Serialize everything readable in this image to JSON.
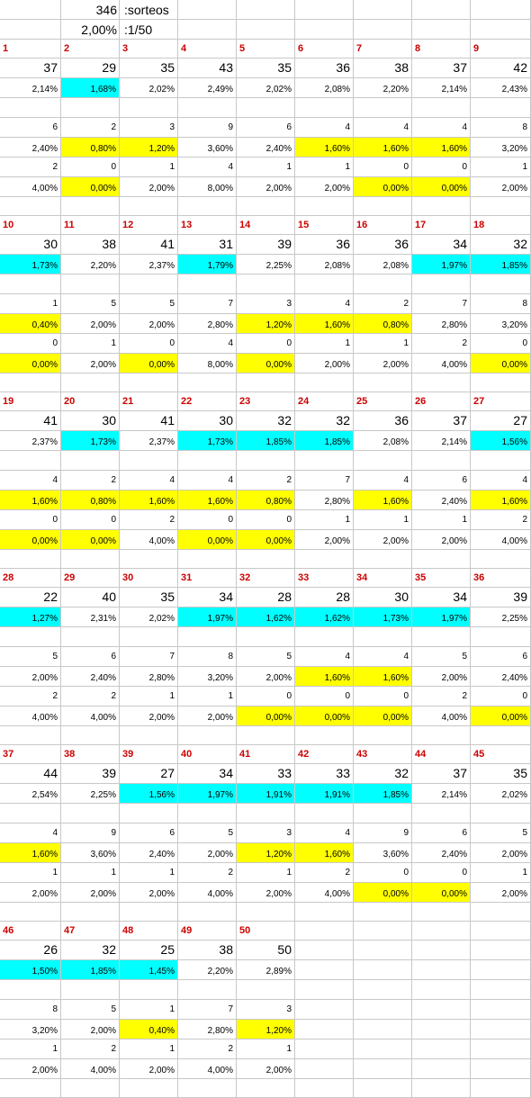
{
  "header": {
    "draws_count": "346",
    "draws_label": ":sorteos",
    "expected_pct": "2,00%",
    "expected_ratio": ":1/50"
  },
  "colors": {
    "low_freq": "#00ffff",
    "low_repeat": "#ffff00",
    "number": "#cc0000",
    "grid": "#c8c8c8"
  },
  "blocks": [
    {
      "numbers": [
        "1",
        "2",
        "3",
        "4",
        "5",
        "6",
        "7",
        "8",
        "9"
      ],
      "counts": [
        "37",
        "29",
        "35",
        "43",
        "35",
        "36",
        "38",
        "37",
        "42"
      ],
      "pcts": [
        "2,14%",
        "1,68%",
        "2,02%",
        "2,49%",
        "2,02%",
        "2,08%",
        "2,20%",
        "2,14%",
        "2,43%"
      ],
      "pct_hl": [
        0,
        1,
        0,
        0,
        0,
        0,
        0,
        0,
        0
      ],
      "r1": [
        "6",
        "2",
        "3",
        "9",
        "6",
        "4",
        "4",
        "4",
        "8"
      ],
      "r1p": [
        "2,40%",
        "0,80%",
        "1,20%",
        "3,60%",
        "2,40%",
        "1,60%",
        "1,60%",
        "1,60%",
        "3,20%"
      ],
      "r1p_hl": [
        0,
        1,
        1,
        0,
        0,
        1,
        1,
        1,
        0
      ],
      "r2": [
        "2",
        "0",
        "1",
        "4",
        "1",
        "1",
        "0",
        "0",
        "1"
      ],
      "r2p": [
        "4,00%",
        "0,00%",
        "2,00%",
        "8,00%",
        "2,00%",
        "2,00%",
        "0,00%",
        "0,00%",
        "2,00%"
      ],
      "r2p_hl": [
        0,
        1,
        0,
        0,
        0,
        0,
        1,
        1,
        0
      ]
    },
    {
      "numbers": [
        "10",
        "11",
        "12",
        "13",
        "14",
        "15",
        "16",
        "17",
        "18"
      ],
      "counts": [
        "30",
        "38",
        "41",
        "31",
        "39",
        "36",
        "36",
        "34",
        "32"
      ],
      "pcts": [
        "1,73%",
        "2,20%",
        "2,37%",
        "1,79%",
        "2,25%",
        "2,08%",
        "2,08%",
        "1,97%",
        "1,85%"
      ],
      "pct_hl": [
        1,
        0,
        0,
        1,
        0,
        0,
        0,
        1,
        1
      ],
      "r1": [
        "1",
        "5",
        "5",
        "7",
        "3",
        "4",
        "2",
        "7",
        "8"
      ],
      "r1p": [
        "0,40%",
        "2,00%",
        "2,00%",
        "2,80%",
        "1,20%",
        "1,60%",
        "0,80%",
        "2,80%",
        "3,20%"
      ],
      "r1p_hl": [
        1,
        0,
        0,
        0,
        1,
        1,
        1,
        0,
        0
      ],
      "r2": [
        "0",
        "1",
        "0",
        "4",
        "0",
        "1",
        "1",
        "2",
        "0"
      ],
      "r2p": [
        "0,00%",
        "2,00%",
        "0,00%",
        "8,00%",
        "0,00%",
        "2,00%",
        "2,00%",
        "4,00%",
        "0,00%"
      ],
      "r2p_hl": [
        1,
        0,
        1,
        0,
        1,
        0,
        0,
        0,
        1
      ]
    },
    {
      "numbers": [
        "19",
        "20",
        "21",
        "22",
        "23",
        "24",
        "25",
        "26",
        "27"
      ],
      "counts": [
        "41",
        "30",
        "41",
        "30",
        "32",
        "32",
        "36",
        "37",
        "27"
      ],
      "pcts": [
        "2,37%",
        "1,73%",
        "2,37%",
        "1,73%",
        "1,85%",
        "1,85%",
        "2,08%",
        "2,14%",
        "1,56%"
      ],
      "pct_hl": [
        0,
        1,
        0,
        1,
        1,
        1,
        0,
        0,
        1
      ],
      "r1": [
        "4",
        "2",
        "4",
        "4",
        "2",
        "7",
        "4",
        "6",
        "4"
      ],
      "r1p": [
        "1,60%",
        "0,80%",
        "1,60%",
        "1,60%",
        "0,80%",
        "2,80%",
        "1,60%",
        "2,40%",
        "1,60%"
      ],
      "r1p_hl": [
        1,
        1,
        1,
        1,
        1,
        0,
        1,
        0,
        1
      ],
      "r2": [
        "0",
        "0",
        "2",
        "0",
        "0",
        "1",
        "1",
        "1",
        "2"
      ],
      "r2p": [
        "0,00%",
        "0,00%",
        "4,00%",
        "0,00%",
        "0,00%",
        "2,00%",
        "2,00%",
        "2,00%",
        "4,00%"
      ],
      "r2p_hl": [
        1,
        1,
        0,
        1,
        1,
        0,
        0,
        0,
        0
      ]
    },
    {
      "numbers": [
        "28",
        "29",
        "30",
        "31",
        "32",
        "33",
        "34",
        "35",
        "36"
      ],
      "counts": [
        "22",
        "40",
        "35",
        "34",
        "28",
        "28",
        "30",
        "34",
        "39"
      ],
      "pcts": [
        "1,27%",
        "2,31%",
        "2,02%",
        "1,97%",
        "1,62%",
        "1,62%",
        "1,73%",
        "1,97%",
        "2,25%"
      ],
      "pct_hl": [
        1,
        0,
        0,
        1,
        1,
        1,
        1,
        1,
        0
      ],
      "r1": [
        "5",
        "6",
        "7",
        "8",
        "5",
        "4",
        "4",
        "5",
        "6"
      ],
      "r1p": [
        "2,00%",
        "2,40%",
        "2,80%",
        "3,20%",
        "2,00%",
        "1,60%",
        "1,60%",
        "2,00%",
        "2,40%"
      ],
      "r1p_hl": [
        0,
        0,
        0,
        0,
        0,
        1,
        1,
        0,
        0
      ],
      "r2": [
        "2",
        "2",
        "1",
        "1",
        "0",
        "0",
        "0",
        "2",
        "0"
      ],
      "r2p": [
        "4,00%",
        "4,00%",
        "2,00%",
        "2,00%",
        "0,00%",
        "0,00%",
        "0,00%",
        "4,00%",
        "0,00%"
      ],
      "r2p_hl": [
        0,
        0,
        0,
        0,
        1,
        1,
        1,
        0,
        1
      ]
    },
    {
      "numbers": [
        "37",
        "38",
        "39",
        "40",
        "41",
        "42",
        "43",
        "44",
        "45"
      ],
      "counts": [
        "44",
        "39",
        "27",
        "34",
        "33",
        "33",
        "32",
        "37",
        "35"
      ],
      "pcts": [
        "2,54%",
        "2,25%",
        "1,56%",
        "1,97%",
        "1,91%",
        "1,91%",
        "1,85%",
        "2,14%",
        "2,02%"
      ],
      "pct_hl": [
        0,
        0,
        1,
        1,
        1,
        1,
        1,
        0,
        0
      ],
      "r1": [
        "4",
        "9",
        "6",
        "5",
        "3",
        "4",
        "9",
        "6",
        "5"
      ],
      "r1p": [
        "1,60%",
        "3,60%",
        "2,40%",
        "2,00%",
        "1,20%",
        "1,60%",
        "3,60%",
        "2,40%",
        "2,00%"
      ],
      "r1p_hl": [
        1,
        0,
        0,
        0,
        1,
        1,
        0,
        0,
        0
      ],
      "r2": [
        "1",
        "1",
        "1",
        "2",
        "1",
        "2",
        "0",
        "0",
        "1"
      ],
      "r2p": [
        "2,00%",
        "2,00%",
        "2,00%",
        "4,00%",
        "2,00%",
        "4,00%",
        "0,00%",
        "0,00%",
        "2,00%"
      ],
      "r2p_hl": [
        0,
        0,
        0,
        0,
        0,
        0,
        1,
        1,
        0
      ]
    },
    {
      "numbers": [
        "46",
        "47",
        "48",
        "49",
        "50"
      ],
      "counts": [
        "26",
        "32",
        "25",
        "38",
        "50"
      ],
      "pcts": [
        "1,50%",
        "1,85%",
        "1,45%",
        "2,20%",
        "2,89%"
      ],
      "pct_hl": [
        1,
        1,
        1,
        0,
        0
      ],
      "r1": [
        "8",
        "5",
        "1",
        "7",
        "3"
      ],
      "r1p": [
        "3,20%",
        "2,00%",
        "0,40%",
        "2,80%",
        "1,20%"
      ],
      "r1p_hl": [
        0,
        0,
        1,
        0,
        1
      ],
      "r2": [
        "1",
        "2",
        "1",
        "2",
        "1"
      ],
      "r2p": [
        "2,00%",
        "4,00%",
        "2,00%",
        "4,00%",
        "2,00%"
      ],
      "r2p_hl": [
        0,
        0,
        0,
        0,
        0
      ]
    }
  ]
}
